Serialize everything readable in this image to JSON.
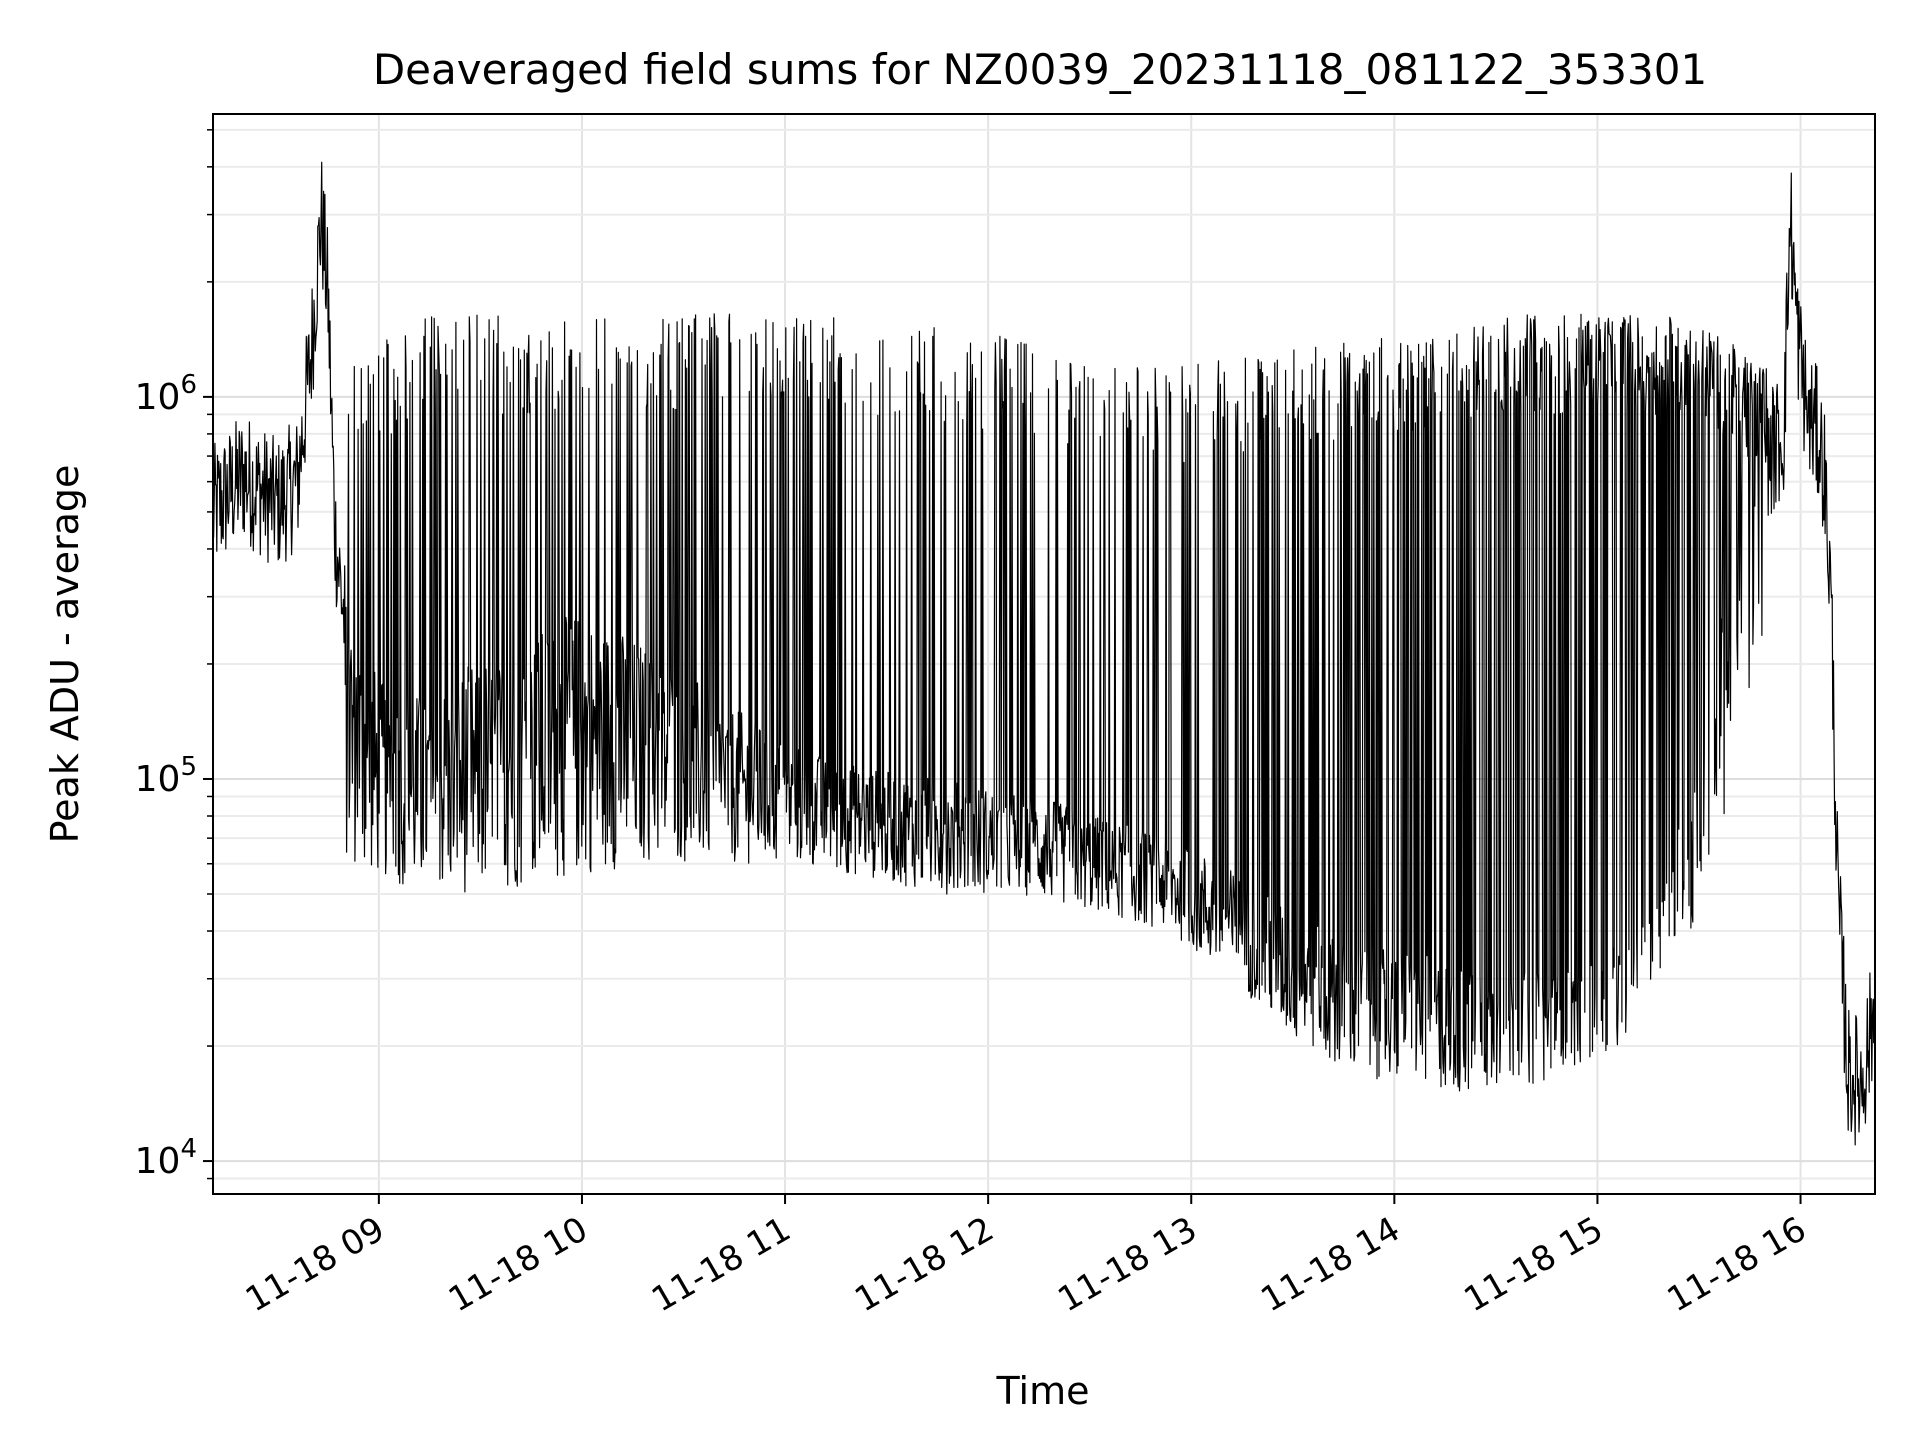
{
  "chart_data": {
    "type": "line",
    "title": "Deaveraged field sums for NZ0039_20231118_081122_353301",
    "xlabel": "Time",
    "ylabel": "Peak ADU - average",
    "xlim": [
      "2023-11-18 08:11",
      "2023-11-18 16:22"
    ],
    "ylim": [
      8200,
      5500000
    ],
    "yscale": "log",
    "grid": true,
    "x_ticks": [
      "11-18 09",
      "11-18 10",
      "11-18 11",
      "11-18 12",
      "11-18 13",
      "11-18 14",
      "11-18 15",
      "11-18 16"
    ],
    "y_ticks": [
      {
        "value": 10000,
        "base": "10",
        "exp": "4"
      },
      {
        "value": 100000,
        "base": "10",
        "exp": "5"
      },
      {
        "value": 1000000,
        "base": "10",
        "exp": "6"
      }
    ],
    "series": [
      {
        "color": "#000000",
        "x": [
          "2023-11-18 08:11",
          "2023-11-18 08:20",
          "2023-11-18 08:30",
          "2023-11-18 08:36",
          "2023-11-18 08:40",
          "2023-11-18 08:43",
          "2023-11-18 08:45",
          "2023-11-18 08:47",
          "2023-11-18 08:50",
          "2023-11-18 08:55",
          "2023-11-18 09:00",
          "2023-11-18 09:10",
          "2023-11-18 09:20",
          "2023-11-18 09:30",
          "2023-11-18 09:40",
          "2023-11-18 09:50",
          "2023-11-18 10:00",
          "2023-11-18 10:15",
          "2023-11-18 10:30",
          "2023-11-18 10:45",
          "2023-11-18 11:00",
          "2023-11-18 11:15",
          "2023-11-18 11:30",
          "2023-11-18 11:45",
          "2023-11-18 12:00",
          "2023-11-18 12:15",
          "2023-11-18 12:30",
          "2023-11-18 12:45",
          "2023-11-18 13:00",
          "2023-11-18 13:15",
          "2023-11-18 13:30",
          "2023-11-18 13:45",
          "2023-11-18 14:00",
          "2023-11-18 14:15",
          "2023-11-18 14:30",
          "2023-11-18 14:45",
          "2023-11-18 15:00",
          "2023-11-18 15:15",
          "2023-11-18 15:30",
          "2023-11-18 15:45",
          "2023-11-18 15:55",
          "2023-11-18 15:57",
          "2023-11-18 15:59",
          "2023-11-18 16:02",
          "2023-11-18 16:05",
          "2023-11-18 16:07",
          "2023-11-18 16:09",
          "2023-11-18 16:11",
          "2023-11-18 16:14",
          "2023-11-18 16:18",
          "2023-11-18 16:22"
        ],
        "y": [
          500000,
          620000,
          520000,
          600000,
          1300000,
          3000000,
          1800000,
          450000,
          250000,
          180000,
          130000,
          120000,
          130000,
          150000,
          160000,
          180000,
          200000,
          170000,
          140000,
          110000,
          90000,
          80000,
          75000,
          72000,
          68000,
          65000,
          58000,
          53000,
          48000,
          40000,
          32000,
          27000,
          26000,
          24000,
          23000,
          22000,
          24000,
          30000,
          80000,
          600000,
          800000,
          3000000,
          1500000,
          900000,
          800000,
          650000,
          300000,
          50000,
          17000,
          16000,
          25000
        ],
        "peaks": [
          1100000,
          1500000,
          1500000,
          1500000,
          1500000,
          1500000,
          1500000,
          1400000,
          1300000,
          1100000,
          1100000,
          1200000,
          1300000,
          1300000,
          1500000,
          1500000,
          1500000,
          1100000
        ],
        "troughs": [
          60000,
          50000,
          50000,
          55000,
          60000,
          60000,
          60000,
          55000,
          50000,
          50000,
          45000,
          40000,
          28000,
          18000,
          16000,
          15000,
          16000,
          20000,
          40000,
          200000
        ]
      }
    ]
  }
}
